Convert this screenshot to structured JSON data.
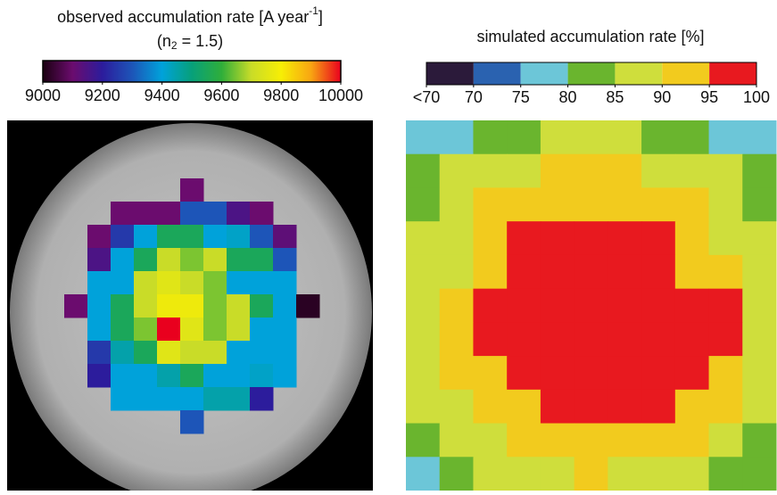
{
  "chart_data": [
    {
      "type": "heatmap",
      "title": {
        "text": "observed accumulation rate [A year",
        "sup": "-1",
        "end": "]"
      },
      "subtitle": {
        "pre": "(n",
        "sub": "2",
        "post": " = 1.5)"
      },
      "clim": [
        9000,
        10000
      ],
      "ticks": [
        9000,
        9200,
        9400,
        9600,
        9800,
        10000
      ],
      "colormap": [
        "#1a0010",
        "#6b0c6e",
        "#2c1c9c",
        "#1d55b8",
        "#00a2da",
        "#07a07a",
        "#2fae3a",
        "#c9dc28",
        "#f7ee05",
        "#f8a512",
        "#e9001e"
      ],
      "z": [
        [
          null,
          null,
          null,
          null,
          null,
          9100,
          null,
          null,
          null,
          null,
          null
        ],
        [
          null,
          null,
          9100,
          9100,
          9100,
          9300,
          9300,
          9150,
          9100,
          null,
          null
        ],
        [
          null,
          9100,
          9250,
          9400,
          9550,
          9550,
          9400,
          9420,
          9300,
          9120,
          null
        ],
        [
          null,
          9150,
          9400,
          9550,
          9700,
          9650,
          9700,
          9550,
          9550,
          9300,
          null
        ],
        [
          null,
          9400,
          9400,
          9700,
          9750,
          9700,
          9650,
          9400,
          9400,
          9400,
          null
        ],
        [
          9100,
          9400,
          9550,
          9700,
          9780,
          9780,
          9650,
          9700,
          9550,
          9400,
          9020
        ],
        [
          null,
          9400,
          9550,
          9650,
          10000,
          9750,
          9650,
          9700,
          9400,
          9400,
          null
        ],
        [
          null,
          9250,
          9450,
          9550,
          9750,
          9700,
          9700,
          9400,
          9400,
          9400,
          null
        ],
        [
          null,
          9200,
          9400,
          9400,
          9450,
          9550,
          9400,
          9400,
          9420,
          9400,
          null
        ],
        [
          null,
          null,
          9400,
          9400,
          9400,
          9400,
          9450,
          9450,
          9200,
          null,
          null
        ],
        [
          null,
          null,
          null,
          null,
          null,
          9300,
          null,
          null,
          null,
          null,
          null
        ]
      ]
    },
    {
      "type": "heatmap",
      "title": {
        "text": "simulated accumulation rate [%]"
      },
      "clim": [
        65,
        100
      ],
      "ticks": [
        {
          "value": 65,
          "label": "<70"
        },
        70,
        75,
        80,
        85,
        90,
        95,
        100
      ],
      "colors": [
        "#2b1a3a",
        "#2a62b0",
        "#6cc6d8",
        "#6ab52e",
        "#cfde3c",
        "#f2cb1e",
        "#e8191f"
      ],
      "z": [
        [
          77,
          77,
          82,
          82,
          87,
          87,
          87,
          82,
          82,
          77,
          77
        ],
        [
          82,
          87,
          87,
          87,
          92,
          92,
          92,
          87,
          87,
          87,
          82
        ],
        [
          82,
          87,
          92,
          92,
          92,
          92,
          92,
          92,
          92,
          87,
          82
        ],
        [
          87,
          87,
          92,
          97,
          97,
          97,
          97,
          97,
          92,
          87,
          87
        ],
        [
          87,
          87,
          92,
          97,
          97,
          97,
          97,
          97,
          92,
          92,
          87
        ],
        [
          87,
          92,
          97,
          97,
          97,
          97,
          97,
          97,
          97,
          97,
          87
        ],
        [
          87,
          92,
          97,
          97,
          97,
          97,
          97,
          97,
          97,
          97,
          87
        ],
        [
          87,
          92,
          92,
          97,
          97,
          97,
          97,
          97,
          97,
          92,
          87
        ],
        [
          87,
          87,
          92,
          92,
          97,
          97,
          97,
          97,
          92,
          92,
          87
        ],
        [
          82,
          87,
          87,
          92,
          92,
          92,
          92,
          92,
          92,
          87,
          82
        ],
        [
          77,
          82,
          87,
          87,
          87,
          92,
          87,
          87,
          87,
          82,
          82
        ]
      ]
    }
  ]
}
